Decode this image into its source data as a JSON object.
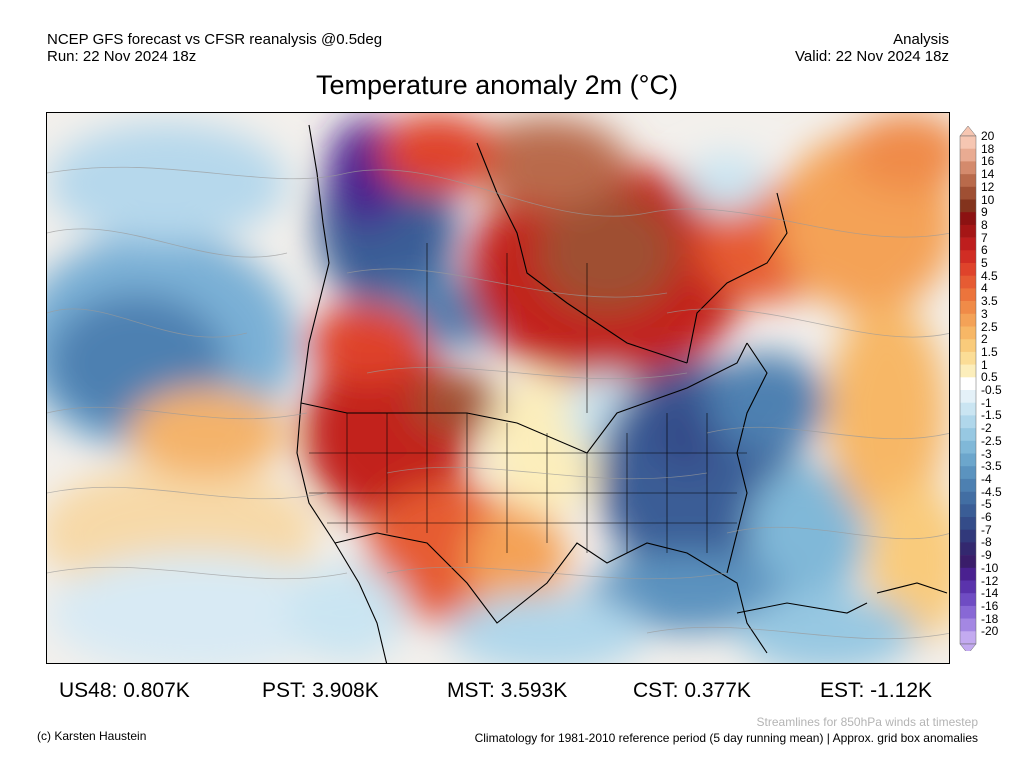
{
  "header": {
    "left_line1": "NCEP GFS forecast vs CFSR reanalysis @0.5deg",
    "left_line2": "Run: 22 Nov 2024 18z",
    "right_line1": "Analysis",
    "right_line2": "Valid: 22 Nov 2024 18z"
  },
  "title": "Temperature anomaly 2m (°C)",
  "colorbar": {
    "labels": [
      "20",
      "18",
      "16",
      "14",
      "12",
      "10",
      "9",
      "8",
      "7",
      "6",
      "5",
      "4.5",
      "4",
      "3.5",
      "3",
      "2.5",
      "2",
      "1.5",
      "1",
      "0.5",
      "-0.5",
      "-1",
      "-1.5",
      "-2",
      "-2.5",
      "-3",
      "-3.5",
      "-4",
      "-4.5",
      "-5",
      "-6",
      "-7",
      "-8",
      "-9",
      "-10",
      "-12",
      "-14",
      "-16",
      "-18",
      "-20"
    ],
    "colors": [
      "#f6c6b2",
      "#e9ab92",
      "#d48a6c",
      "#b96a4b",
      "#9f4f33",
      "#83331d",
      "#8c1212",
      "#a51616",
      "#be1e1e",
      "#d12d24",
      "#df432b",
      "#e65b33",
      "#ec743c",
      "#f08b48",
      "#f4a257",
      "#f7b766",
      "#f9cb7b",
      "#fbdd96",
      "#fceebb",
      "#ffffff",
      "#e4f1f8",
      "#cae5f2",
      "#b0d7eb",
      "#97c8e2",
      "#80b8d8",
      "#6ca6cc",
      "#5b93bf",
      "#4d80b1",
      "#426ea3",
      "#3a5d96",
      "#344c89",
      "#31397b",
      "#33286f",
      "#3a1d6a",
      "#4a2190",
      "#5a33ac",
      "#6f4cc3",
      "#8868d5",
      "#a487e3",
      "#c3aaf0"
    ]
  },
  "stats": {
    "us48": "US48: 0.807K",
    "pst": "PST: 3.908K",
    "mst": "MST: 3.593K",
    "cst": "CST: 0.377K",
    "est": "EST: -1.12K"
  },
  "footer": {
    "copyright": "(c) Karsten Haustein",
    "streamlines": "Streamlines for 850hPa winds at timestep",
    "climatology": "Climatology for 1981-2010 reference period (5 day running mean) | Approx. grid box anomalies"
  }
}
